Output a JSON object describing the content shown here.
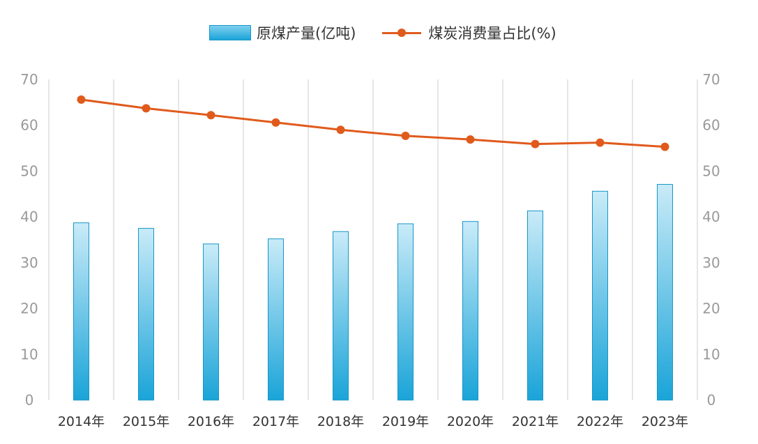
{
  "legend": {
    "bar_label": "原煤产量(亿吨)",
    "line_label": "煤炭消费量占比(%)"
  },
  "colors": {
    "bar_top": "#c9ebf8",
    "bar_bottom": "#1aa4d8",
    "bar_border": "#1796c8",
    "line": "#e05a1c",
    "grid": "#dddddd",
    "tick_text": "#999999"
  },
  "chart_data": {
    "type": "bar",
    "categories": [
      "2014年",
      "2015年",
      "2016年",
      "2017年",
      "2018年",
      "2019年",
      "2020年",
      "2021年",
      "2022年",
      "2023年"
    ],
    "series": [
      {
        "name": "原煤产量(亿吨)",
        "type": "bar",
        "axis": "left",
        "values": [
          38.7,
          37.5,
          34.1,
          35.2,
          36.8,
          38.5,
          39.0,
          41.3,
          45.6,
          47.1
        ]
      },
      {
        "name": "煤炭消费量占比(%)",
        "type": "line",
        "axis": "left",
        "values": [
          65.6,
          63.7,
          62.2,
          60.6,
          59.0,
          57.7,
          56.9,
          55.9,
          56.2,
          55.3
        ]
      }
    ],
    "y_left": {
      "min": 0,
      "max": 70,
      "ticks": [
        0,
        10,
        20,
        30,
        40,
        50,
        60,
        70
      ]
    },
    "y_right": {
      "min": 0,
      "max": 70,
      "ticks": [
        0,
        10,
        20,
        30,
        40,
        50,
        60,
        70
      ]
    },
    "grid": "vertical",
    "legend_position": "top-center"
  }
}
